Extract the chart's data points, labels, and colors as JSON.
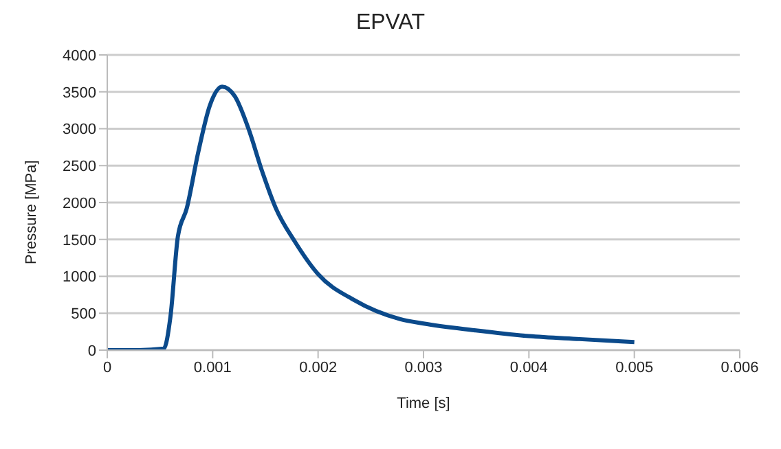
{
  "chart_data": {
    "type": "line",
    "title": "EPVAT",
    "xlabel": "Time [s]",
    "ylabel": "Pressure [MPa]",
    "x": [
      0,
      0.0003,
      0.000536,
      0.0006,
      0.00067,
      0.000754,
      0.000863,
      0.000972,
      0.00109,
      0.00121,
      0.00134,
      0.00147,
      0.0016,
      0.00178,
      0.002,
      0.00234,
      0.00278,
      0.003,
      0.00348,
      0.004,
      0.00448,
      0.005
    ],
    "series": [
      {
        "color": "#0b4a8b",
        "values": [
          0,
          0,
          20,
          460,
          1540,
          1920,
          2680,
          3310,
          3570,
          3440,
          3000,
          2420,
          1920,
          1470,
          1030,
          680,
          420,
          360,
          270,
          190,
          150,
          110
        ]
      }
    ],
    "xlim": [
      0,
      0.006
    ],
    "xticks": [
      0,
      0.001,
      0.002,
      0.003,
      0.004,
      0.005,
      0.006
    ],
    "ylim": [
      0,
      4000
    ],
    "yticks": [
      0,
      500,
      1000,
      1500,
      2000,
      2500,
      3000,
      3500,
      4000
    ],
    "grid": "y",
    "marker": "none",
    "line_style": "solid",
    "legend": false
  }
}
